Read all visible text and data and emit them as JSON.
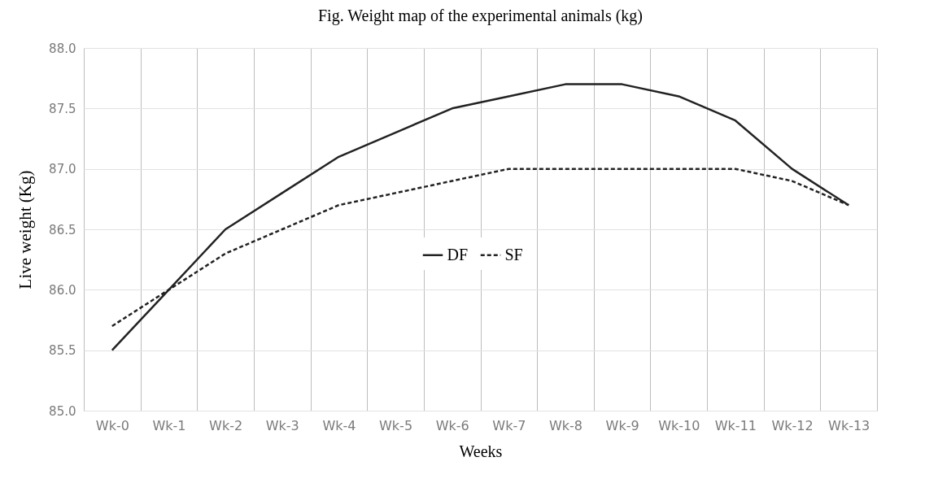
{
  "chart_data": {
    "type": "line",
    "title": "Fig. Weight map of the experimental animals (kg)",
    "xlabel": "Weeks",
    "ylabel": "Live weight (Kg)",
    "categories": [
      "Wk-0",
      "Wk-1",
      "Wk-2",
      "Wk-3",
      "Wk-4",
      "Wk-5",
      "Wk-6",
      "Wk-7",
      "Wk-8",
      "Wk-9",
      "Wk-10",
      "Wk-11",
      "Wk-12",
      "Wk-13"
    ],
    "series": [
      {
        "name": "DF",
        "color": "#222222",
        "line_style": "solid",
        "values": [
          85.5,
          86.0,
          86.5,
          86.8,
          87.1,
          87.3,
          87.5,
          87.6,
          87.7,
          87.7,
          87.6,
          87.4,
          87.0,
          86.7
        ]
      },
      {
        "name": "SF",
        "color": "#222222",
        "line_style": "dashed",
        "values": [
          85.7,
          86.0,
          86.3,
          86.5,
          86.7,
          86.8,
          86.9,
          87.0,
          87.0,
          87.0,
          87.0,
          87.0,
          86.9,
          86.7
        ]
      }
    ],
    "ylim": [
      85,
      88
    ],
    "yticks": [
      {
        "value": 85,
        "label": "85.0"
      },
      85.5,
      {
        "value": 86,
        "label": "86.0"
      },
      86.5,
      {
        "value": 87,
        "label": "87.0"
      },
      87.5,
      {
        "value": 88,
        "label": "88.0"
      }
    ],
    "grid": true,
    "legend": "center",
    "marker": "none"
  }
}
